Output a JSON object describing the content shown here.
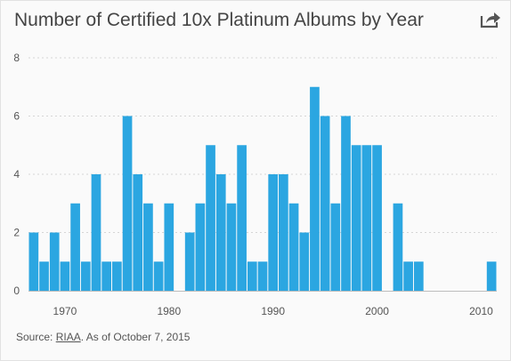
{
  "title": "Number of Certified 10x Platinum Albums by Year",
  "share_icon": "share-icon",
  "source": {
    "prefix": "Source: ",
    "link": "RIAA",
    "suffix": ". As of October 7, 2015"
  },
  "colors": {
    "bar": "#2ba6e1",
    "grid": "#d5d5d5",
    "text": "#555555"
  },
  "chart_data": {
    "type": "bar",
    "title": "Number of Certified 10x Platinum Albums by Year",
    "xlabel": "",
    "ylabel": "",
    "ylim": [
      0,
      8
    ],
    "yticks": [
      0,
      2,
      4,
      6,
      8
    ],
    "xticks": [
      1970,
      1980,
      1990,
      2000,
      2010
    ],
    "grid": true,
    "x": [
      1967,
      1968,
      1969,
      1970,
      1971,
      1972,
      1973,
      1974,
      1975,
      1976,
      1977,
      1978,
      1979,
      1980,
      1981,
      1982,
      1983,
      1984,
      1985,
      1986,
      1987,
      1988,
      1989,
      1990,
      1991,
      1992,
      1993,
      1994,
      1995,
      1996,
      1997,
      1998,
      1999,
      2000,
      2001,
      2002,
      2003,
      2004,
      2005,
      2006,
      2007,
      2008,
      2009,
      2010,
      2011
    ],
    "values": [
      2,
      1,
      2,
      1,
      3,
      1,
      4,
      1,
      1,
      6,
      4,
      3,
      1,
      3,
      0,
      2,
      3,
      5,
      4,
      3,
      5,
      1,
      1,
      4,
      4,
      3,
      2,
      7,
      6,
      3,
      6,
      5,
      5,
      5,
      0,
      3,
      1,
      1,
      0,
      0,
      0,
      0,
      0,
      0,
      1
    ]
  }
}
